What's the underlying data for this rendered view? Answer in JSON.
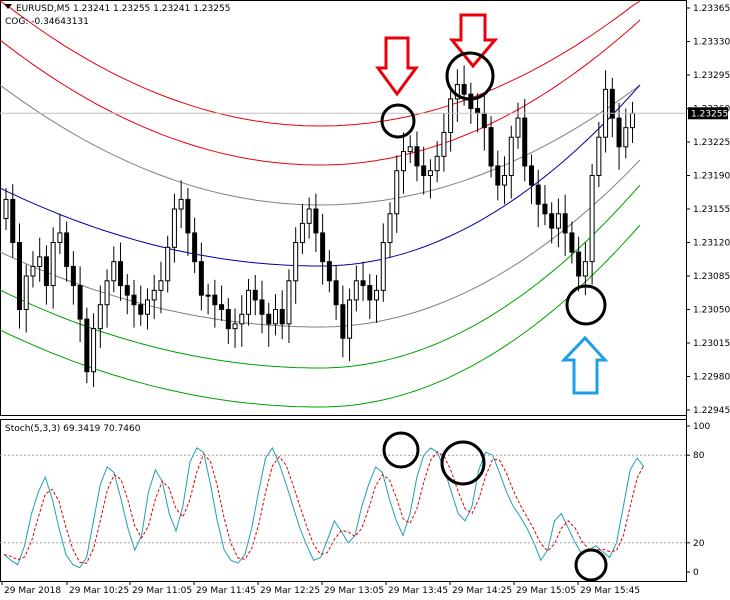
{
  "window": {
    "symbol_info": "EURUSD,M5  1.23241 1.23255 1.23241 1.23255",
    "indicator_info": "COG: -0.34643131",
    "stoch_info": "Stoch(5,3,3) 69.3419 70.7460",
    "menu_icon": "triangle-down-icon"
  },
  "price_axis": {
    "labels": [
      "1.23365",
      "1.23330",
      "1.23295",
      "1.23260",
      "1.23225",
      "1.23190",
      "1.23155",
      "1.23120",
      "1.23085",
      "1.23050",
      "1.23015",
      "1.22980",
      "1.22945"
    ],
    "min": 1.22945,
    "max": 1.23365,
    "current_price": "1.23255",
    "current_price_value": 1.23255
  },
  "stoch_axis": {
    "labels": [
      "100",
      "80",
      "20",
      "0"
    ],
    "levels": [
      100,
      80,
      20,
      0
    ],
    "dotted_levels": [
      80,
      20
    ]
  },
  "time_axis": {
    "labels": [
      "29 Mar 2018",
      "29 Mar 10:25",
      "29 Mar 11:05",
      "29 Mar 11:45",
      "29 Mar 12:25",
      "29 Mar 13:05",
      "29 Mar 13:45",
      "29 Mar 14:25",
      "29 Mar 15:05",
      "29 Mar 15:45"
    ]
  },
  "colors": {
    "bull": "#ffffff",
    "bear": "#000000",
    "band_red": "#e8000b",
    "band_gray": "#808080",
    "band_blue": "#0000a0",
    "band_green": "#00a000",
    "stoch_main": "#20a0b0",
    "stoch_signal": "#e00000",
    "arrow_red": "#e8000b",
    "arrow_blue": "#1e9ee6",
    "circle": "#000000"
  },
  "annotations": {
    "arrows": [
      "down-arrow-icon",
      "down-arrow-icon",
      "up-arrow-icon"
    ],
    "circles": [
      "circle-marker",
      "circle-marker",
      "circle-marker",
      "circle-marker",
      "circle-marker",
      "circle-marker"
    ]
  },
  "chart_data": {
    "type": "candlestick",
    "series": [
      {
        "name": "EURUSD,M5",
        "kind": "candles"
      },
      {
        "name": "COG",
        "kind": "bands"
      },
      {
        "name": "Stoch(5,3,3)",
        "kind": "oscillator"
      }
    ]
  }
}
